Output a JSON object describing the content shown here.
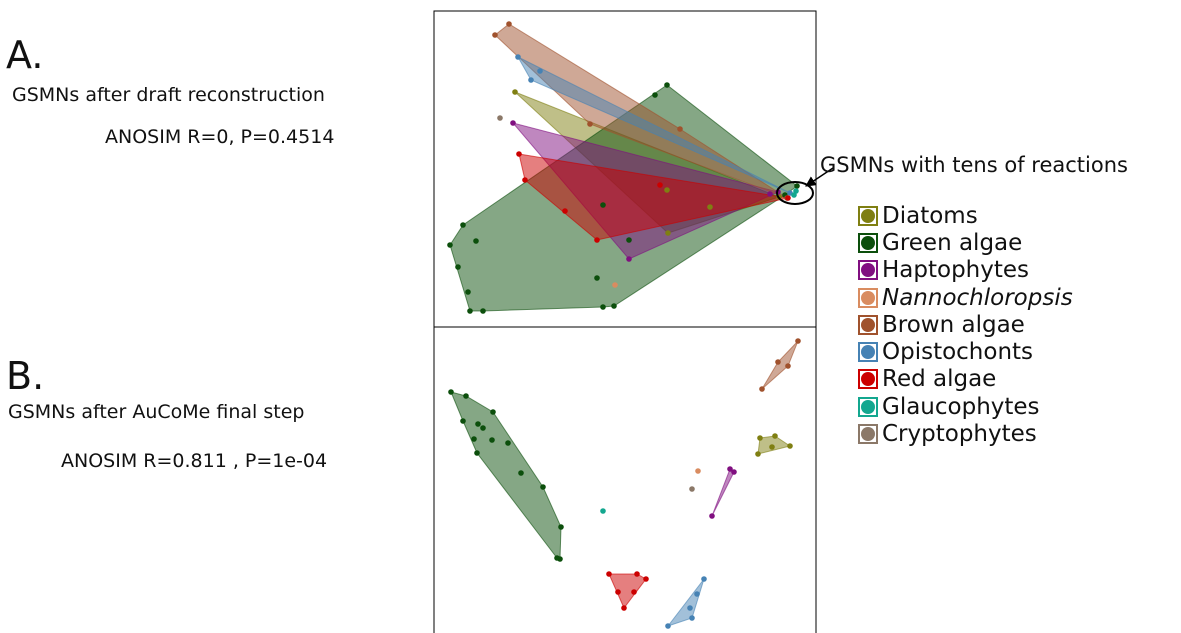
{
  "panels": {
    "a": {
      "letter": "A.",
      "title": "GSMNs after draft reconstruction",
      "stat": "ANOSIM R=0, P=0.4514"
    },
    "b": {
      "letter": "B.",
      "title": "GSMNs after AuCoMe final step",
      "stat": "ANOSIM R=0.811 , P=1e-04"
    }
  },
  "annotation": "GSMNs with tens of reactions",
  "legend": [
    {
      "label": "Diatoms",
      "color": "#7f7f12",
      "italic": false
    },
    {
      "label": "Green algae",
      "color": "#0c4f0c",
      "italic": false
    },
    {
      "label": "Haptophytes",
      "color": "#800f80",
      "italic": false
    },
    {
      "label": "Nannochloropsis",
      "color": "#d98c60",
      "italic": true
    },
    {
      "label": "Brown algae",
      "color": "#a0522d",
      "italic": false
    },
    {
      "label": "Opistochonts",
      "color": "#4682b4",
      "italic": false
    },
    {
      "label": "Red algae",
      "color": "#cc0000",
      "italic": false
    },
    {
      "label": "Glaucophytes",
      "color": "#13a78f",
      "italic": false
    },
    {
      "label": "Cryptophytes",
      "color": "#8b7868",
      "italic": false
    }
  ],
  "chart_data": [
    {
      "type": "scatter",
      "title": "GSMNs after draft reconstruction",
      "subtitle": "ANOSIM R=0, P=0.4514",
      "series": [
        {
          "name": "Diatoms",
          "hull": true,
          "points": [
            [
              515,
              92
            ],
            [
              667,
              190
            ],
            [
              710,
              207
            ],
            [
              668,
              233
            ],
            [
              779,
              197
            ]
          ]
        },
        {
          "name": "Green algae",
          "hull": true,
          "points": [
            [
              667,
              85
            ],
            [
              655,
              95
            ],
            [
              463,
              225
            ],
            [
              450,
              245
            ],
            [
              476,
              241
            ],
            [
              458,
              267
            ],
            [
              468,
              292
            ],
            [
              470,
              311
            ],
            [
              483,
              311
            ],
            [
              597,
              278
            ],
            [
              603,
              307
            ],
            [
              614,
              306
            ],
            [
              603,
              205
            ],
            [
              629,
              240
            ],
            [
              785,
              195
            ],
            [
              797,
              186
            ]
          ]
        },
        {
          "name": "Haptophytes",
          "hull": true,
          "points": [
            [
              513,
              123
            ],
            [
              629,
              259
            ],
            [
              778,
              192
            ],
            [
              770,
              194
            ]
          ]
        },
        {
          "name": "Nannochloropsis",
          "hull": false,
          "points": [
            [
              615,
              285
            ]
          ]
        },
        {
          "name": "Brown algae",
          "hull": true,
          "points": [
            [
              509,
              24
            ],
            [
              495,
              35
            ],
            [
              680,
              129
            ],
            [
              590,
              124
            ],
            [
              787,
              198
            ]
          ]
        },
        {
          "name": "Opistochonts",
          "hull": true,
          "points": [
            [
              518,
              57
            ],
            [
              540,
              71
            ],
            [
              531,
              80
            ],
            [
              790,
              193
            ]
          ]
        },
        {
          "name": "Red algae",
          "hull": true,
          "points": [
            [
              519,
              154
            ],
            [
              525,
              180
            ],
            [
              565,
              211
            ],
            [
              597,
              240
            ],
            [
              660,
              185
            ],
            [
              788,
              198
            ]
          ]
        },
        {
          "name": "Glaucophytes",
          "hull": false,
          "points": [
            [
              796,
              191
            ],
            [
              794,
              195
            ]
          ]
        },
        {
          "name": "Cryptophytes",
          "hull": false,
          "points": [
            [
              500,
              118
            ]
          ]
        }
      ]
    },
    {
      "type": "scatter",
      "title": "GSMNs after AuCoMe final step",
      "subtitle": "ANOSIM R=0.811 , P=1e-04",
      "series": [
        {
          "name": "Diatoms",
          "hull": true,
          "points": [
            [
              760,
              438
            ],
            [
              775,
              436
            ],
            [
              790,
              446
            ],
            [
              772,
              447
            ],
            [
              758,
              454
            ]
          ]
        },
        {
          "name": "Green algae",
          "hull": true,
          "points": [
            [
              451,
              392
            ],
            [
              466,
              396
            ],
            [
              493,
              412
            ],
            [
              478,
              424
            ],
            [
              463,
              421
            ],
            [
              483,
              428
            ],
            [
              474,
              439
            ],
            [
              492,
              440
            ],
            [
              508,
              443
            ],
            [
              477,
              453
            ],
            [
              521,
              473
            ],
            [
              543,
              487
            ],
            [
              561,
              527
            ],
            [
              560,
              559
            ],
            [
              557,
              558
            ]
          ]
        },
        {
          "name": "Haptophytes",
          "hull": true,
          "points": [
            [
              730,
              469
            ],
            [
              734,
              472
            ],
            [
              712,
              516
            ]
          ]
        },
        {
          "name": "Nannochloropsis",
          "hull": false,
          "points": [
            [
              698,
              471
            ]
          ]
        },
        {
          "name": "Brown algae",
          "hull": true,
          "points": [
            [
              798,
              341
            ],
            [
              788,
              366
            ],
            [
              778,
              362
            ],
            [
              762,
              389
            ]
          ]
        },
        {
          "name": "Opistochonts",
          "hull": true,
          "points": [
            [
              704,
              579
            ],
            [
              697,
              594
            ],
            [
              690,
              608
            ],
            [
              692,
              618
            ],
            [
              668,
              626
            ]
          ]
        },
        {
          "name": "Red algae",
          "hull": true,
          "points": [
            [
              609,
              574
            ],
            [
              637,
              574
            ],
            [
              646,
              579
            ],
            [
              634,
              592
            ],
            [
              618,
              592
            ],
            [
              624,
              608
            ]
          ]
        },
        {
          "name": "Glaucophytes",
          "hull": false,
          "points": [
            [
              603,
              511
            ]
          ]
        },
        {
          "name": "Cryptophytes",
          "hull": false,
          "points": [
            [
              692,
              489
            ]
          ]
        }
      ]
    }
  ]
}
